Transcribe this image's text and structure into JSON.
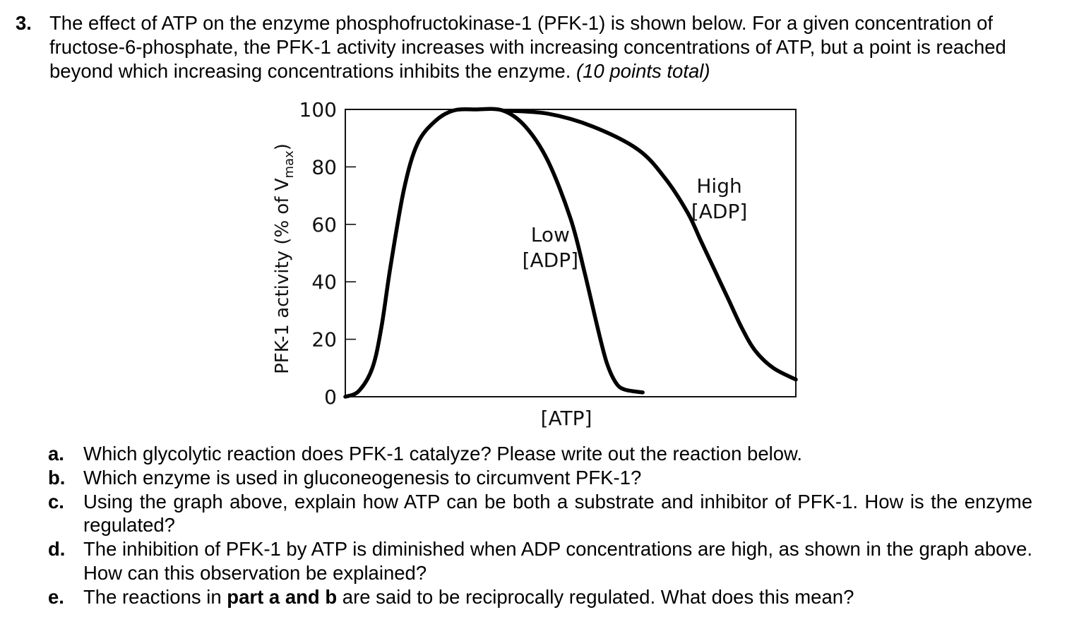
{
  "question": {
    "number": "3.",
    "text": "The effect of ATP on the enzyme phosphofructokinase-1 (PFK-1) is shown below. For a given concentration of fructose-6-phosphate, the PFK-1 activity increases with increasing concentrations of ATP, but a point is reached beyond which increasing concentrations inhibits the enzyme.",
    "points": "(10 points total)"
  },
  "chart_data": {
    "type": "line",
    "title": "",
    "xlabel": "[ATP]",
    "ylabel_main": "PFK-1 activity (% of V",
    "ylabel_sub": "max",
    "ylabel_close": ")",
    "ylim": [
      0,
      100
    ],
    "xlim": [
      0,
      10
    ],
    "y_ticks": [
      "0",
      "20",
      "40",
      "60",
      "80",
      "100"
    ],
    "x_ticks_labeled": false,
    "grid": false,
    "series": [
      {
        "name": "Low [ADP]",
        "label_lines": [
          "Low",
          "[ADP]"
        ],
        "x": [
          0.0,
          0.3,
          0.6,
          0.8,
          1.0,
          1.3,
          1.6,
          2.0,
          2.4,
          2.9,
          3.5,
          4.0,
          4.5,
          5.0,
          5.3,
          5.6,
          5.8,
          6.0,
          6.2,
          6.6
        ],
        "y": [
          0,
          2,
          10,
          24,
          45,
          72,
          88,
          96,
          99.6,
          100,
          99.6,
          94,
          82,
          62,
          44,
          24,
          12,
          5,
          2.5,
          1.5
        ]
      },
      {
        "name": "High [ADP]",
        "label_lines": [
          "High",
          "[ADP]"
        ],
        "x": [
          3.5,
          4.5,
          5.5,
          6.5,
          7.1,
          7.6,
          7.9,
          8.2,
          8.5,
          8.8,
          9.1,
          9.5,
          10.0
        ],
        "y": [
          99.6,
          98.5,
          94,
          86,
          76,
          64,
          54,
          44,
          34,
          24,
          16,
          10,
          6
        ]
      }
    ]
  },
  "subquestions": [
    {
      "letter": "a.",
      "text": "Which glycolytic reaction does PFK-1 catalyze? Please write out the reaction below."
    },
    {
      "letter": "b.",
      "text": "Which enzyme is used in gluconeogenesis to circumvent PFK-1?"
    },
    {
      "letter": "c.",
      "text": "Using the graph above, explain how ATP can be both a substrate and inhibitor of PFK-1. How is the enzyme regulated?"
    },
    {
      "letter": "d.",
      "text": "The inhibition of PFK-1 by ATP is diminished when ADP concentrations are high, as shown in the graph above. How can this observation be explained?"
    },
    {
      "letter": "e.",
      "text_before": "The reactions in ",
      "text_bold": "part a and b",
      "text_after": " are said to be reciprocally regulated. What does this mean?"
    }
  ]
}
